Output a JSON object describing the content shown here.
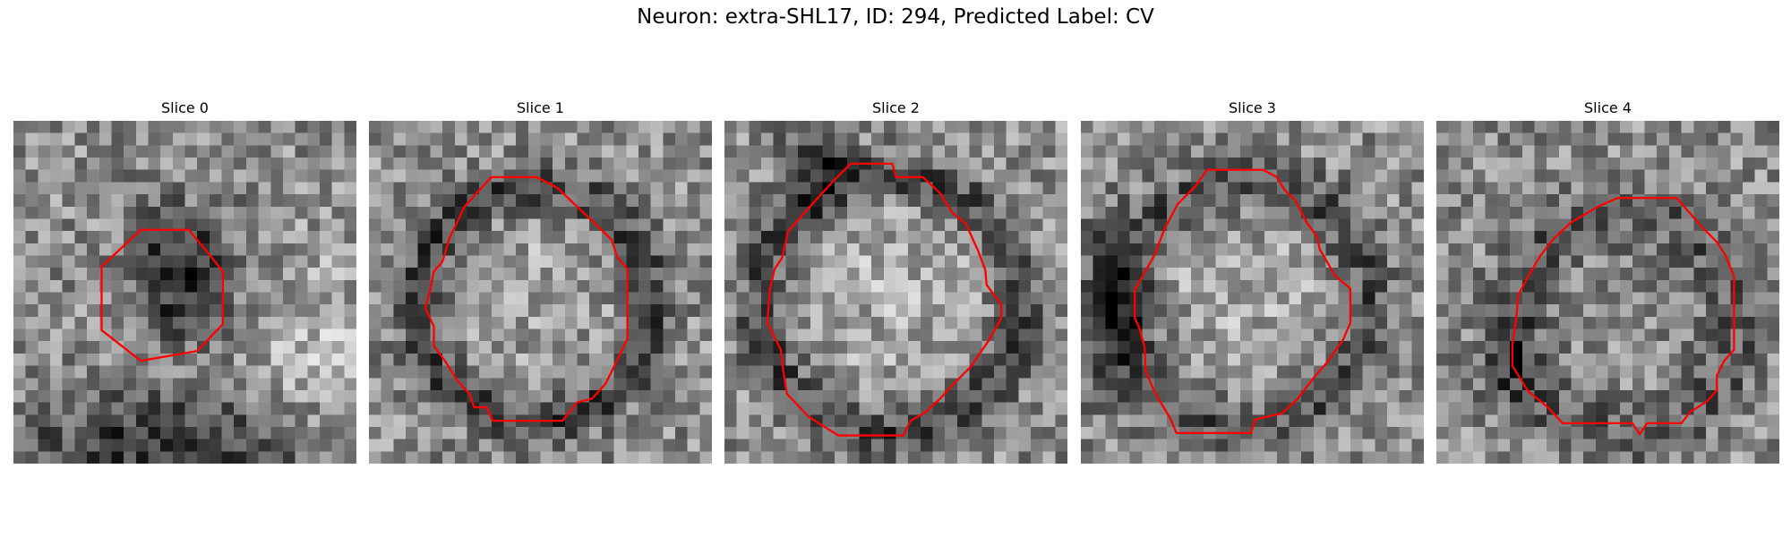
{
  "figure": {
    "title": "Neuron: extra-SHL17, ID: 294, Predicted Label: CV"
  },
  "colors": {
    "contour": "#ff0000",
    "colormap": "gray"
  },
  "panels": [
    {
      "title": "Slice 0",
      "grid_size": 28,
      "seed": 11,
      "structure": "dark-blob",
      "contour": [
        [
          10.4,
          8.9
        ],
        [
          14.3,
          8.9
        ],
        [
          15.4,
          10.2
        ],
        [
          17.1,
          12.3
        ],
        [
          17.1,
          16.6
        ],
        [
          15.0,
          18.8
        ],
        [
          10.4,
          19.6
        ],
        [
          7.2,
          17.1
        ],
        [
          7.2,
          11.9
        ]
      ]
    },
    {
      "title": "Slice 1",
      "grid_size": 28,
      "seed": 23,
      "structure": "cell",
      "contour": [
        [
          10.0,
          4.6
        ],
        [
          13.7,
          4.6
        ],
        [
          15.4,
          5.5
        ],
        [
          17.2,
          7.2
        ],
        [
          19.8,
          9.7
        ],
        [
          20.3,
          11.2
        ],
        [
          21.1,
          12.1
        ],
        [
          21.1,
          17.8
        ],
        [
          20.0,
          20.1
        ],
        [
          19.3,
          21.5
        ],
        [
          18.2,
          22.7
        ],
        [
          17.0,
          23.0
        ],
        [
          15.8,
          24.5
        ],
        [
          10.1,
          24.5
        ],
        [
          9.6,
          23.4
        ],
        [
          8.6,
          23.4
        ],
        [
          8.2,
          22.3
        ],
        [
          7.2,
          21.2
        ],
        [
          6.2,
          19.6
        ],
        [
          5.3,
          18.4
        ],
        [
          5.3,
          16.8
        ],
        [
          4.6,
          15.3
        ],
        [
          5.0,
          13.8
        ],
        [
          5.3,
          12.3
        ],
        [
          6.0,
          11.5
        ],
        [
          6.6,
          9.5
        ],
        [
          7.2,
          8.3
        ],
        [
          7.8,
          7.0
        ],
        [
          8.7,
          6.0
        ]
      ]
    },
    {
      "title": "Slice 2",
      "grid_size": 28,
      "seed": 37,
      "structure": "cell-bright",
      "contour": [
        [
          10.3,
          3.5
        ],
        [
          13.7,
          3.5
        ],
        [
          14.0,
          4.6
        ],
        [
          16.2,
          4.6
        ],
        [
          17.6,
          5.9
        ],
        [
          18.6,
          7.5
        ],
        [
          19.7,
          8.4
        ],
        [
          20.7,
          10.6
        ],
        [
          21.3,
          12.2
        ],
        [
          21.4,
          13.4
        ],
        [
          22.6,
          15.0
        ],
        [
          22.6,
          16.1
        ],
        [
          21.6,
          17.9
        ],
        [
          20.1,
          20.1
        ],
        [
          18.6,
          21.6
        ],
        [
          17.6,
          22.7
        ],
        [
          16.4,
          23.8
        ],
        [
          15.2,
          24.5
        ],
        [
          14.6,
          25.7
        ],
        [
          9.3,
          25.7
        ],
        [
          6.9,
          24.2
        ],
        [
          5.1,
          22.3
        ],
        [
          4.8,
          20.4
        ],
        [
          4.6,
          18.7
        ],
        [
          3.5,
          16.5
        ],
        [
          3.7,
          13.8
        ],
        [
          4.1,
          12.1
        ],
        [
          4.7,
          11.2
        ],
        [
          5.2,
          9.0
        ],
        [
          6.1,
          8.0
        ],
        [
          7.8,
          6.1
        ],
        [
          9.0,
          4.8
        ]
      ]
    },
    {
      "title": "Slice 3",
      "grid_size": 28,
      "seed": 51,
      "structure": "cell-left-dark",
      "contour": [
        [
          10.3,
          4.0
        ],
        [
          14.9,
          4.0
        ],
        [
          16.0,
          4.6
        ],
        [
          16.6,
          5.6
        ],
        [
          17.5,
          6.5
        ],
        [
          18.5,
          8.4
        ],
        [
          19.3,
          9.5
        ],
        [
          19.5,
          10.5
        ],
        [
          20.1,
          11.5
        ],
        [
          20.7,
          12.6
        ],
        [
          22.0,
          13.7
        ],
        [
          22.0,
          16.5
        ],
        [
          21.4,
          17.9
        ],
        [
          20.2,
          19.6
        ],
        [
          19.0,
          21.0
        ],
        [
          17.7,
          22.7
        ],
        [
          16.4,
          23.9
        ],
        [
          14.2,
          24.4
        ],
        [
          13.9,
          25.5
        ],
        [
          7.8,
          25.5
        ],
        [
          7.3,
          24.3
        ],
        [
          6.1,
          22.3
        ],
        [
          5.3,
          20.5
        ],
        [
          5.2,
          18.5
        ],
        [
          4.8,
          17.0
        ],
        [
          4.4,
          16.1
        ],
        [
          4.4,
          13.8
        ],
        [
          5.2,
          12.4
        ],
        [
          6.0,
          11.0
        ],
        [
          6.8,
          8.9
        ],
        [
          7.9,
          6.8
        ],
        [
          9.3,
          5.4
        ]
      ]
    },
    {
      "title": "Slice 4",
      "grid_size": 28,
      "seed": 67,
      "structure": "cell-grainy",
      "contour": [
        [
          14.8,
          6.3
        ],
        [
          19.6,
          6.3
        ],
        [
          21.8,
          8.8
        ],
        [
          22.9,
          9.9
        ],
        [
          23.6,
          11.0
        ],
        [
          24.3,
          12.7
        ],
        [
          24.3,
          18.7
        ],
        [
          23.5,
          19.6
        ],
        [
          22.9,
          20.8
        ],
        [
          22.9,
          22.0
        ],
        [
          22.1,
          22.9
        ],
        [
          20.7,
          23.8
        ],
        [
          20.0,
          24.7
        ],
        [
          17.2,
          24.7
        ],
        [
          16.6,
          25.6
        ],
        [
          16.0,
          24.7
        ],
        [
          10.3,
          24.7
        ],
        [
          9.1,
          23.4
        ],
        [
          7.5,
          22.1
        ],
        [
          6.2,
          20.0
        ],
        [
          6.2,
          18.3
        ],
        [
          6.5,
          16.3
        ],
        [
          6.7,
          14.2
        ],
        [
          7.5,
          12.7
        ],
        [
          8.5,
          11.0
        ],
        [
          9.6,
          9.6
        ],
        [
          11.0,
          8.3
        ],
        [
          13.2,
          7.0
        ]
      ]
    }
  ]
}
